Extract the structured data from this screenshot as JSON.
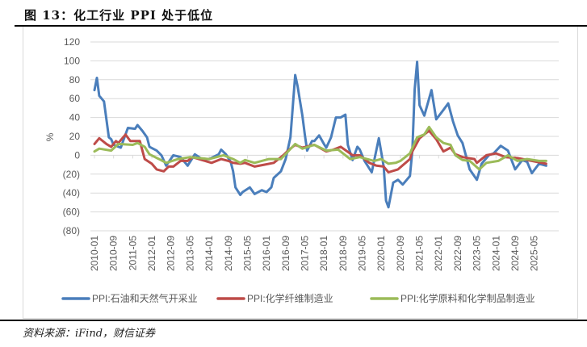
{
  "title": "图 13：化工行业 PPI 处于低位",
  "source": "资料来源：iFind，财信证券",
  "chart_data": {
    "type": "line",
    "title": "",
    "xlabel": "",
    "ylabel": "%",
    "ylim": [
      -80,
      120
    ],
    "yticks": [
      120,
      100,
      80,
      60,
      40,
      20,
      0,
      -20,
      -40,
      -60,
      -80
    ],
    "ytick_labels": [
      "120",
      "100",
      "80",
      "60",
      "40",
      "20",
      "0",
      "(20)",
      "(40)",
      "(60)",
      "(80)"
    ],
    "negative_label_color": "#ff0000",
    "grid": true,
    "legend_position": "bottom",
    "xticks": [
      "2010-01",
      "2010-09",
      "2011-05",
      "2012-01",
      "2012-09",
      "2013-05",
      "2014-01",
      "2014-09",
      "2015-05",
      "2016-01",
      "2016-09",
      "2017-05",
      "2018-01",
      "2018-09",
      "2019-05",
      "2020-01",
      "2020-09",
      "2021-05",
      "2022-01",
      "2022-09",
      "2023-05",
      "2024-01",
      "2024-09",
      "2025-05"
    ],
    "series": [
      {
        "name": "PPI:石油和天然气开采业",
        "color": "#4a7ebb",
        "points": [
          [
            "2010-01",
            69
          ],
          [
            "2010-02",
            82
          ],
          [
            "2010-03",
            63
          ],
          [
            "2010-05",
            57
          ],
          [
            "2010-07",
            19
          ],
          [
            "2010-08",
            17
          ],
          [
            "2010-09",
            11
          ],
          [
            "2010-12",
            8
          ],
          [
            "2011-01",
            15
          ],
          [
            "2011-03",
            29
          ],
          [
            "2011-06",
            28
          ],
          [
            "2011-07",
            32
          ],
          [
            "2011-09",
            26
          ],
          [
            "2011-11",
            19
          ],
          [
            "2011-12",
            9
          ],
          [
            "2012-03",
            5
          ],
          [
            "2012-05",
            0
          ],
          [
            "2012-07",
            -11
          ],
          [
            "2012-10",
            0
          ],
          [
            "2013-01",
            -2
          ],
          [
            "2013-04",
            -11
          ],
          [
            "2013-07",
            1
          ],
          [
            "2013-10",
            -4
          ],
          [
            "2014-01",
            -4
          ],
          [
            "2014-05",
            1
          ],
          [
            "2014-06",
            6
          ],
          [
            "2014-08",
            1
          ],
          [
            "2014-10",
            -7
          ],
          [
            "2014-11",
            -17
          ],
          [
            "2014-12",
            -34
          ],
          [
            "2015-02",
            -42
          ],
          [
            "2015-03",
            -39
          ],
          [
            "2015-06",
            -34
          ],
          [
            "2015-08",
            -41
          ],
          [
            "2015-11",
            -37
          ],
          [
            "2016-01",
            -39
          ],
          [
            "2016-03",
            -34
          ],
          [
            "2016-04",
            -24
          ],
          [
            "2016-07",
            -17
          ],
          [
            "2016-09",
            -4
          ],
          [
            "2016-11",
            19
          ],
          [
            "2017-01",
            85
          ],
          [
            "2017-02",
            73
          ],
          [
            "2017-04",
            42
          ],
          [
            "2017-05",
            22
          ],
          [
            "2017-06",
            5
          ],
          [
            "2017-08",
            15
          ],
          [
            "2017-09",
            15
          ],
          [
            "2017-11",
            21
          ],
          [
            "2018-01",
            12
          ],
          [
            "2018-02",
            8
          ],
          [
            "2018-04",
            19
          ],
          [
            "2018-06",
            40
          ],
          [
            "2018-08",
            40
          ],
          [
            "2018-10",
            43
          ],
          [
            "2018-11",
            11
          ],
          [
            "2019-01",
            -5
          ],
          [
            "2019-03",
            9
          ],
          [
            "2019-04",
            6
          ],
          [
            "2019-06",
            -6
          ],
          [
            "2019-09",
            -18
          ],
          [
            "2019-12",
            18
          ],
          [
            "2020-02",
            -12
          ],
          [
            "2020-03",
            -48
          ],
          [
            "2020-04",
            -55
          ],
          [
            "2020-06",
            -29
          ],
          [
            "2020-08",
            -26
          ],
          [
            "2020-10",
            -31
          ],
          [
            "2021-01",
            -22
          ],
          [
            "2021-02",
            5
          ],
          [
            "2021-03",
            70
          ],
          [
            "2021-04",
            99
          ],
          [
            "2021-05",
            53
          ],
          [
            "2021-07",
            42
          ],
          [
            "2021-10",
            69
          ],
          [
            "2021-12",
            38
          ],
          [
            "2022-03",
            48
          ],
          [
            "2022-05",
            55
          ],
          [
            "2022-07",
            36
          ],
          [
            "2022-09",
            21
          ],
          [
            "2022-11",
            13
          ],
          [
            "2023-02",
            -15
          ],
          [
            "2023-05",
            -26
          ],
          [
            "2023-07",
            -9
          ],
          [
            "2023-10",
            0
          ],
          [
            "2023-12",
            2
          ],
          [
            "2024-03",
            10
          ],
          [
            "2024-06",
            5
          ],
          [
            "2024-09",
            -15
          ],
          [
            "2024-12",
            -5
          ],
          [
            "2025-02",
            -7
          ],
          [
            "2025-04",
            -19
          ],
          [
            "2025-07",
            -9
          ],
          [
            "2025-10",
            -11
          ]
        ]
      },
      {
        "name": "PPI:化学纤维制造业",
        "color": "#be4b48",
        "points": [
          [
            "2010-01",
            12
          ],
          [
            "2010-03",
            18
          ],
          [
            "2010-06",
            12
          ],
          [
            "2010-08",
            9
          ],
          [
            "2010-10",
            15
          ],
          [
            "2010-11",
            13
          ],
          [
            "2011-01",
            19
          ],
          [
            "2011-02",
            22
          ],
          [
            "2011-04",
            15
          ],
          [
            "2011-08",
            15
          ],
          [
            "2011-10",
            -4
          ],
          [
            "2012-01",
            -9
          ],
          [
            "2012-03",
            -15
          ],
          [
            "2012-06",
            -17
          ],
          [
            "2012-08",
            -12
          ],
          [
            "2012-10",
            -12
          ],
          [
            "2013-01",
            -6
          ],
          [
            "2013-04",
            -6
          ],
          [
            "2013-06",
            -2
          ],
          [
            "2013-10",
            -5
          ],
          [
            "2014-02",
            -8
          ],
          [
            "2014-06",
            -4
          ],
          [
            "2014-09",
            -6
          ],
          [
            "2014-11",
            -8
          ],
          [
            "2015-02",
            -9
          ],
          [
            "2015-04",
            -8
          ],
          [
            "2015-08",
            -12
          ],
          [
            "2015-12",
            -10
          ],
          [
            "2016-04",
            -8
          ],
          [
            "2016-08",
            0
          ],
          [
            "2016-10",
            5
          ],
          [
            "2017-01",
            11
          ],
          [
            "2017-04",
            8
          ],
          [
            "2017-09",
            11
          ],
          [
            "2018-02",
            4
          ],
          [
            "2018-05",
            6
          ],
          [
            "2018-08",
            9
          ],
          [
            "2019-01",
            0
          ],
          [
            "2019-04",
            0
          ],
          [
            "2019-08",
            -8
          ],
          [
            "2019-11",
            -11
          ],
          [
            "2020-02",
            -12
          ],
          [
            "2020-04",
            -18
          ],
          [
            "2020-08",
            -15
          ],
          [
            "2021-01",
            -4
          ],
          [
            "2021-02",
            4
          ],
          [
            "2021-05",
            18
          ],
          [
            "2021-09",
            26
          ],
          [
            "2021-12",
            17
          ],
          [
            "2022-03",
            4
          ],
          [
            "2022-06",
            8
          ],
          [
            "2022-08",
            1
          ],
          [
            "2022-11",
            -2
          ],
          [
            "2023-04",
            -4
          ],
          [
            "2023-05",
            -8
          ],
          [
            "2023-09",
            0
          ],
          [
            "2024-01",
            2
          ],
          [
            "2024-05",
            -2
          ],
          [
            "2024-10",
            -3
          ],
          [
            "2025-04",
            -6
          ],
          [
            "2025-10",
            -9
          ]
        ]
      },
      {
        "name": "PPI:化学原料和化学制品制造业",
        "color": "#9bbb59",
        "points": [
          [
            "2010-01",
            4
          ],
          [
            "2010-03",
            7
          ],
          [
            "2010-08",
            5
          ],
          [
            "2010-11",
            12
          ],
          [
            "2011-05",
            11
          ],
          [
            "2011-07",
            13
          ],
          [
            "2011-10",
            9
          ],
          [
            "2011-12",
            1
          ],
          [
            "2012-04",
            -4
          ],
          [
            "2012-07",
            -8
          ],
          [
            "2012-12",
            -4
          ],
          [
            "2013-05",
            -2
          ],
          [
            "2014-01",
            -4
          ],
          [
            "2014-07",
            0
          ],
          [
            "2014-11",
            -4
          ],
          [
            "2015-02",
            -8
          ],
          [
            "2015-04",
            -5
          ],
          [
            "2015-08",
            -8
          ],
          [
            "2016-02",
            -4
          ],
          [
            "2016-07",
            -4
          ],
          [
            "2016-10",
            4
          ],
          [
            "2017-01",
            12
          ],
          [
            "2017-04",
            7
          ],
          [
            "2017-09",
            11
          ],
          [
            "2018-02",
            5
          ],
          [
            "2018-07",
            6
          ],
          [
            "2018-12",
            -4
          ],
          [
            "2019-04",
            -2
          ],
          [
            "2019-10",
            -6
          ],
          [
            "2020-01",
            -4
          ],
          [
            "2020-04",
            -9
          ],
          [
            "2020-07",
            -8
          ],
          [
            "2020-09",
            -6
          ],
          [
            "2021-01",
            2
          ],
          [
            "2021-04",
            19
          ],
          [
            "2021-07",
            22
          ],
          [
            "2021-09",
            30
          ],
          [
            "2021-12",
            19
          ],
          [
            "2022-03",
            13
          ],
          [
            "2022-06",
            11
          ],
          [
            "2022-08",
            0
          ],
          [
            "2022-11",
            -5
          ],
          [
            "2023-02",
            -6
          ],
          [
            "2023-06",
            -15
          ],
          [
            "2023-09",
            -8
          ],
          [
            "2024-02",
            -6
          ],
          [
            "2024-06",
            0
          ],
          [
            "2024-10",
            -6
          ],
          [
            "2025-02",
            -4
          ],
          [
            "2025-07",
            -6
          ],
          [
            "2025-10",
            -6
          ]
        ]
      }
    ]
  }
}
